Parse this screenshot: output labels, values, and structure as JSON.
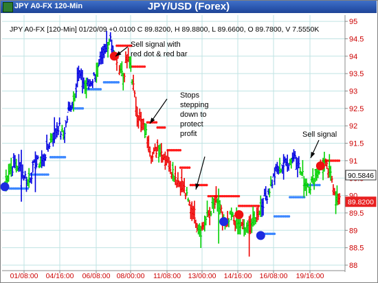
{
  "window": {
    "title_left": "JPY A0-FX 120-Min",
    "title_center": "JPY/USD (Forex)"
  },
  "chart_data": {
    "type": "bar",
    "title": "JPY/USD (Forex)",
    "info_line": "JPY A0-FX [120-Min] 01/20/09 +0.0100 C 89.8200, H 89.8800, L 89.6600, O 89.7800, V 7.5550K",
    "x_tick_labels": [
      "01/08:00",
      "04/16:00",
      "06/08:00",
      "08/00:00",
      "11/08:00",
      "13/00:00",
      "14/16:00",
      "16/08:00",
      "19/16:00"
    ],
    "y_ticks": [
      88,
      88.5,
      89,
      89.5,
      90,
      90.5,
      91,
      91.5,
      92,
      92.5,
      93,
      93.5,
      94,
      94.5,
      95
    ],
    "ylim": [
      88,
      95.1
    ],
    "price_labels": [
      {
        "text": "90.5846",
        "value": 90.5846,
        "style": "box-white"
      },
      {
        "text": "89.8200",
        "value": 89.82,
        "style": "box-red"
      }
    ],
    "annotations": [
      {
        "id": "sell-signal-dot-bar",
        "lines": [
          "Sell signal with",
          "red dot & red bar"
        ]
      },
      {
        "id": "stops-stepping",
        "lines": [
          "Stops",
          "stepping",
          "down to",
          "protect",
          "profit"
        ]
      },
      {
        "id": "sell-signal",
        "lines": [
          "Sell signal"
        ]
      }
    ],
    "colors": {
      "up": "#0000e0",
      "down": "#ee0000",
      "neutral": "#00d000",
      "grid": "#bfe3e3",
      "axis_text": "#cc0000",
      "stop_up": "#3a86ff",
      "stop_down": "#ff1a1a"
    },
    "price_path": [
      [
        0,
        90.3
      ],
      [
        3,
        90.7
      ],
      [
        8,
        90.9
      ],
      [
        12,
        90.8
      ],
      [
        18,
        90.4
      ],
      [
        24,
        90.9
      ],
      [
        30,
        91.0
      ],
      [
        36,
        91.6
      ],
      [
        42,
        92.0
      ],
      [
        46,
        91.7
      ],
      [
        50,
        92.4
      ],
      [
        54,
        92.8
      ],
      [
        58,
        93.5
      ],
      [
        64,
        93.1
      ],
      [
        70,
        93.4
      ],
      [
        76,
        93.8
      ],
      [
        80,
        94.3
      ],
      [
        83,
        94.6
      ],
      [
        86,
        94.0
      ],
      [
        90,
        93.8
      ],
      [
        93,
        93.4
      ],
      [
        96,
        93.9
      ],
      [
        99,
        93.7
      ],
      [
        102,
        92.8
      ],
      [
        105,
        92.3
      ],
      [
        108,
        92.0
      ],
      [
        112,
        91.7
      ],
      [
        116,
        91.1
      ],
      [
        120,
        91.4
      ],
      [
        124,
        91.2
      ],
      [
        128,
        91.0
      ],
      [
        132,
        90.7
      ],
      [
        136,
        90.4
      ],
      [
        140,
        90.3
      ],
      [
        144,
        89.8
      ],
      [
        148,
        89.6
      ],
      [
        151,
        89.2
      ],
      [
        154,
        89.0
      ],
      [
        158,
        89.3
      ],
      [
        162,
        89.6
      ],
      [
        166,
        89.8
      ],
      [
        170,
        89.5
      ],
      [
        174,
        89.1
      ],
      [
        178,
        89.4
      ],
      [
        182,
        89.2
      ],
      [
        186,
        89.1
      ],
      [
        190,
        89.0
      ],
      [
        193,
        89.2
      ],
      [
        196,
        89.3
      ],
      [
        200,
        89.6
      ],
      [
        204,
        89.9
      ],
      [
        208,
        90.2
      ],
      [
        212,
        90.6
      ],
      [
        216,
        90.8
      ],
      [
        220,
        90.9
      ],
      [
        224,
        91.0
      ],
      [
        228,
        91.2
      ],
      [
        232,
        90.7
      ],
      [
        236,
        90.4
      ],
      [
        240,
        90.3
      ],
      [
        244,
        90.6
      ],
      [
        248,
        90.8
      ],
      [
        251,
        90.9
      ],
      [
        254,
        90.7
      ],
      [
        257,
        90.5
      ],
      [
        260,
        90.0
      ],
      [
        263,
        89.8
      ]
    ],
    "signals": [
      {
        "type": "sell",
        "bar": 86,
        "value": 94.0,
        "color": "red"
      },
      {
        "type": "buy",
        "bar": 0,
        "value": 90.25,
        "color": "blue"
      },
      {
        "type": "buy",
        "bar": 172,
        "value": 89.25,
        "color": "blue"
      },
      {
        "type": "sell",
        "bar": 184,
        "value": 89.45,
        "color": "red"
      },
      {
        "type": "buy",
        "bar": 201,
        "value": 88.85,
        "color": "blue"
      },
      {
        "type": "sell",
        "bar": 248,
        "value": 90.85,
        "color": "red"
      }
    ]
  }
}
